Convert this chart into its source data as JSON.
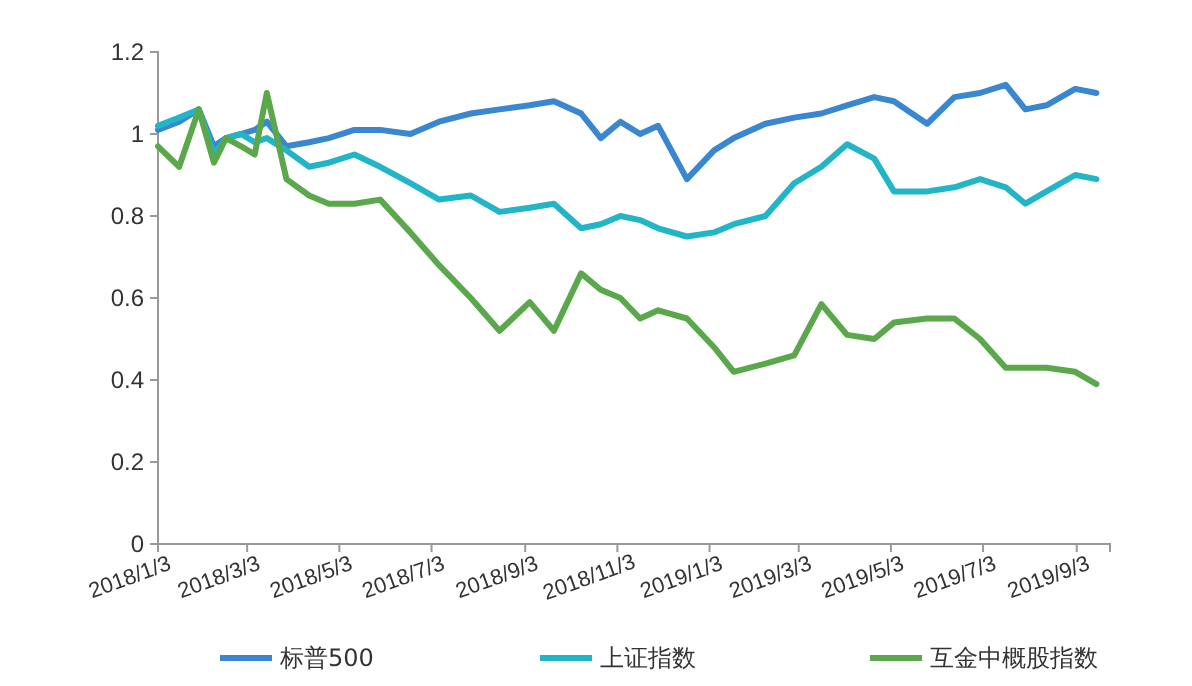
{
  "chart_data": {
    "type": "line",
    "x": [
      "2018-01-03",
      "2018-01-17",
      "2018-01-30",
      "2018-02-09",
      "2018-02-17",
      "2018-02-27",
      "2018-03-08",
      "2018-03-16",
      "2018-03-29",
      "2018-04-13",
      "2018-04-26",
      "2018-05-13",
      "2018-05-30",
      "2018-06-19",
      "2018-07-08",
      "2018-07-29",
      "2018-08-17",
      "2018-09-06",
      "2018-09-22",
      "2018-10-10",
      "2018-10-23",
      "2018-11-05",
      "2018-11-18",
      "2018-11-30",
      "2018-12-19",
      "2019-01-06",
      "2019-01-19",
      "2019-02-09",
      "2019-02-28",
      "2019-03-18",
      "2019-04-04",
      "2019-04-22",
      "2019-05-05",
      "2019-05-27",
      "2019-06-14",
      "2019-07-01",
      "2019-07-18",
      "2019-07-31",
      "2019-08-14",
      "2019-09-02",
      "2019-09-16"
    ],
    "series": [
      {
        "name": "标普500",
        "color": "#3a87d0",
        "values": [
          1.01,
          1.03,
          1.06,
          0.97,
          0.99,
          1.0,
          1.01,
          1.03,
          0.97,
          0.98,
          0.99,
          1.01,
          1.01,
          1.0,
          1.03,
          1.05,
          1.06,
          1.07,
          1.08,
          1.05,
          0.99,
          1.03,
          1.0,
          1.02,
          0.89,
          0.96,
          0.99,
          1.025,
          1.04,
          1.05,
          1.07,
          1.09,
          1.08,
          1.025,
          1.09,
          1.1,
          1.12,
          1.06,
          1.07,
          1.11,
          1.1
        ]
      },
      {
        "name": "上证指数",
        "color": "#22b5c8",
        "values": [
          1.02,
          1.04,
          1.06,
          0.95,
          0.99,
          1.0,
          0.98,
          0.99,
          0.96,
          0.92,
          0.93,
          0.95,
          0.92,
          0.88,
          0.84,
          0.85,
          0.81,
          0.82,
          0.83,
          0.77,
          0.78,
          0.8,
          0.79,
          0.77,
          0.75,
          0.76,
          0.78,
          0.8,
          0.88,
          0.92,
          0.975,
          0.94,
          0.86,
          0.86,
          0.87,
          0.89,
          0.87,
          0.83,
          0.86,
          0.9,
          0.89
        ]
      },
      {
        "name": "互金中概股指数",
        "color": "#5aa84b",
        "values": [
          0.97,
          0.92,
          1.06,
          0.93,
          0.99,
          0.97,
          0.95,
          1.1,
          0.89,
          0.85,
          0.83,
          0.83,
          0.84,
          0.76,
          0.68,
          0.6,
          0.52,
          0.59,
          0.52,
          0.66,
          0.62,
          0.6,
          0.55,
          0.57,
          0.55,
          0.48,
          0.42,
          0.44,
          0.46,
          0.585,
          0.51,
          0.5,
          0.54,
          0.55,
          0.55,
          0.5,
          0.43,
          0.43,
          0.43,
          0.42,
          0.39
        ]
      }
    ],
    "xlim": [
      "2018-01-03",
      "2019-09-25"
    ],
    "xticks": [
      {
        "value": "2018-01-03",
        "label": "2018/1/3"
      },
      {
        "value": "2018-03-03",
        "label": "2018/3/3"
      },
      {
        "value": "2018-05-03",
        "label": "2018/5/3"
      },
      {
        "value": "2018-07-03",
        "label": "2018/7/3"
      },
      {
        "value": "2018-09-03",
        "label": "2018/9/3"
      },
      {
        "value": "2018-11-03",
        "label": "2018/11/3"
      },
      {
        "value": "2019-01-03",
        "label": "2019/1/3"
      },
      {
        "value": "2019-03-03",
        "label": "2019/3/3"
      },
      {
        "value": "2019-05-03",
        "label": "2019/5/3"
      },
      {
        "value": "2019-07-03",
        "label": "2019/7/3"
      },
      {
        "value": "2019-09-03",
        "label": "2019/9/3"
      }
    ],
    "ylim": [
      0,
      1.2
    ],
    "yticks": [
      0,
      0.2,
      0.4,
      0.6,
      0.8,
      1,
      1.2
    ],
    "legend": "bottom",
    "grid": false,
    "marker": "none",
    "line_style": "solid"
  }
}
